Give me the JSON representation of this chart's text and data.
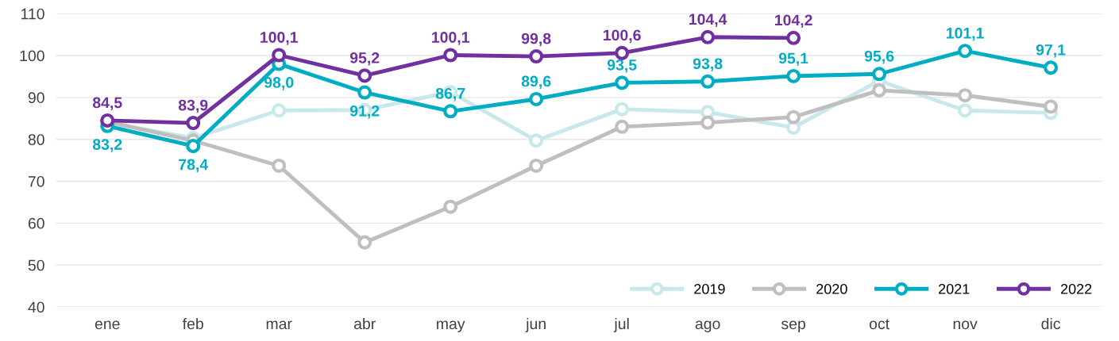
{
  "chart_data": {
    "type": "line",
    "categories": [
      "ene",
      "feb",
      "mar",
      "abr",
      "may",
      "jun",
      "jul",
      "ago",
      "sep",
      "oct",
      "nov",
      "dic"
    ],
    "ylim": [
      40,
      110
    ],
    "yticks": [
      40,
      50,
      60,
      70,
      80,
      90,
      100,
      110
    ],
    "grid": "y",
    "legend": "bottom right",
    "marker": "circle",
    "line_style": "solid",
    "series": [
      {
        "name": "2019",
        "color": "#c8e8eb",
        "values": [
          84.0,
          80.3,
          86.9,
          87.0,
          91.3,
          79.7,
          87.2,
          86.5,
          82.8,
          94.0,
          86.9,
          86.3
        ]
      },
      {
        "name": "2020",
        "color": "#bfbfbf",
        "values": [
          84.2,
          79.7,
          73.7,
          55.4,
          63.9,
          73.7,
          83.0,
          84.0,
          85.3,
          91.7,
          90.5,
          87.8
        ]
      },
      {
        "name": "2021",
        "color": "#00adc2",
        "values": [
          83.2,
          78.4,
          98.0,
          91.2,
          86.7,
          89.6,
          93.5,
          93.8,
          95.1,
          95.6,
          101.1,
          97.1
        ],
        "value_labels": [
          "83,2",
          "78,4",
          "98,0",
          "91,2",
          "86,7",
          "89,6",
          "93,5",
          "93,8",
          "95,1",
          "95,6",
          "101,1",
          "97,1"
        ]
      },
      {
        "name": "2022",
        "color": "#7030a0",
        "values": [
          84.5,
          83.9,
          100.1,
          95.2,
          100.1,
          99.8,
          100.6,
          104.4,
          104.2,
          null,
          null,
          null
        ],
        "value_labels": [
          "84,5",
          "83,9",
          "100,1",
          "95,2",
          "100,1",
          "99,8",
          "100,6",
          "104,4",
          "104,2",
          null,
          null,
          null
        ]
      }
    ]
  }
}
